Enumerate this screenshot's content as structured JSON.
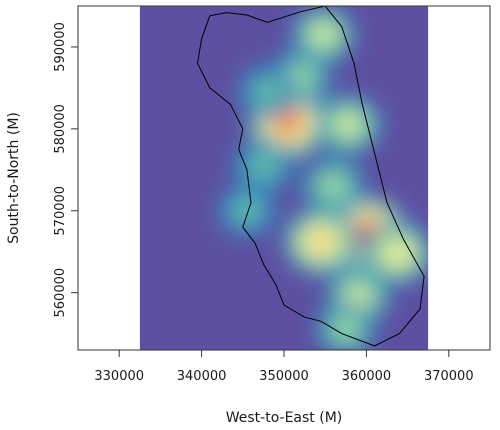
{
  "chart_data": {
    "type": "heatmap",
    "title": "",
    "xlabel": "West-to-East (M)",
    "ylabel": "South-to-North (M)",
    "xlim": [
      325000,
      375000
    ],
    "ylim": [
      553000,
      595000
    ],
    "x_ticks": [
      330000,
      340000,
      350000,
      360000,
      370000
    ],
    "y_ticks": [
      560000,
      570000,
      580000,
      590000
    ],
    "x_tick_labels": [
      "330000",
      "340000",
      "350000",
      "360000",
      "370000"
    ],
    "y_tick_labels": [
      "560000",
      "570000",
      "580000",
      "590000"
    ],
    "raster_extent": {
      "x": [
        332500,
        367500
      ],
      "y": [
        553000,
        595000
      ]
    },
    "background_color": "#5e4fa2",
    "colormap": [
      "#5e4fa2",
      "#3288bd",
      "#66c2a5",
      "#abdda4",
      "#e6f598",
      "#fee08b",
      "#fdae61",
      "#f46d43",
      "#d53e4f",
      "#9e0142"
    ],
    "density_hotspots": [
      {
        "x": 350500,
        "y": 580800,
        "intensity": 0.9
      },
      {
        "x": 360200,
        "y": 567000,
        "intensity": 1.0
      },
      {
        "x": 354500,
        "y": 566200,
        "intensity": 0.72
      },
      {
        "x": 363800,
        "y": 564800,
        "intensity": 0.58
      },
      {
        "x": 357800,
        "y": 580500,
        "intensity": 0.48
      },
      {
        "x": 354800,
        "y": 591500,
        "intensity": 0.4
      },
      {
        "x": 352000,
        "y": 586200,
        "intensity": 0.35
      },
      {
        "x": 356000,
        "y": 573000,
        "intensity": 0.38
      },
      {
        "x": 359000,
        "y": 559500,
        "intensity": 0.42
      },
      {
        "x": 357500,
        "y": 555500,
        "intensity": 0.28
      },
      {
        "x": 347500,
        "y": 575500,
        "intensity": 0.25
      },
      {
        "x": 348000,
        "y": 584500,
        "intensity": 0.22
      },
      {
        "x": 345500,
        "y": 570000,
        "intensity": 0.18
      }
    ],
    "boundary_outline": [
      [
        341000,
        593800
      ],
      [
        343000,
        594200
      ],
      [
        345500,
        593900
      ],
      [
        348000,
        593000
      ],
      [
        352000,
        594300
      ],
      [
        355000,
        595000
      ],
      [
        357000,
        592500
      ],
      [
        358500,
        588000
      ],
      [
        359500,
        583000
      ],
      [
        361000,
        577000
      ],
      [
        362500,
        571000
      ],
      [
        364500,
        566500
      ],
      [
        367000,
        562000
      ],
      [
        366500,
        558000
      ],
      [
        364000,
        555000
      ],
      [
        361000,
        553500
      ],
      [
        357000,
        555000
      ],
      [
        354500,
        556500
      ],
      [
        352500,
        557000
      ],
      [
        350000,
        558500
      ],
      [
        349000,
        561000
      ],
      [
        347500,
        563500
      ],
      [
        346500,
        566000
      ],
      [
        345000,
        568000
      ],
      [
        346000,
        571000
      ],
      [
        345500,
        575000
      ],
      [
        344500,
        577500
      ],
      [
        345000,
        580000
      ],
      [
        343500,
        583000
      ],
      [
        341000,
        585000
      ],
      [
        339500,
        588000
      ],
      [
        340000,
        591000
      ]
    ]
  }
}
